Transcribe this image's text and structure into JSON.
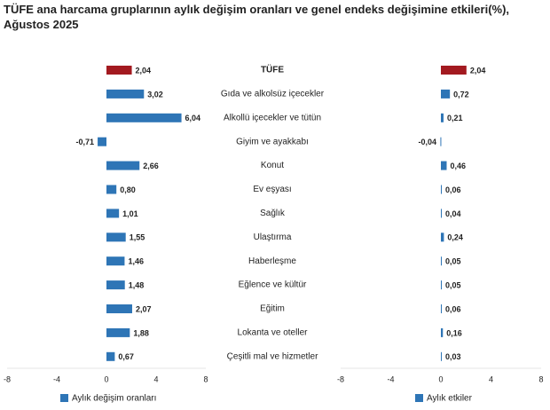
{
  "title": "TÜFE ana harcama gruplarının aylık değişim oranları ve genel endeks değişimine etkileri(%), Ağustos 2025",
  "chart_data": [
    {
      "type": "bar",
      "orientation": "horizontal",
      "categories": [
        "TÜFE",
        "Gıda ve alkolsüz içecekler",
        "Alkollü içecekler ve tütün",
        "Giyim ve ayakkabı",
        "Konut",
        "Ev eşyası",
        "Sağlık",
        "Ulaştırma",
        "Haberleşme",
        "Eğlence ve kültür",
        "Eğitim",
        "Lokanta ve oteller",
        "Çeşitli mal ve hizmetler"
      ],
      "series": [
        {
          "name": "Aylık değişim oranları",
          "color": "#2e75b6",
          "colors": [
            "#a31a20",
            "#2e75b6",
            "#2e75b6",
            "#2e75b6",
            "#2e75b6",
            "#2e75b6",
            "#2e75b6",
            "#2e75b6",
            "#2e75b6",
            "#2e75b6",
            "#2e75b6",
            "#2e75b6",
            "#2e75b6"
          ],
          "values": [
            2.04,
            3.02,
            6.04,
            -0.71,
            2.66,
            0.8,
            1.01,
            1.55,
            1.46,
            1.48,
            2.07,
            1.88,
            0.67
          ],
          "value_labels": [
            "2,04",
            "3,02",
            "6,04",
            "-0,71",
            "2,66",
            "0,80",
            "1,01",
            "1,55",
            "1,46",
            "1,48",
            "2,07",
            "1,88",
            "0,67"
          ]
        }
      ],
      "xlim": [
        -8,
        8
      ],
      "xticks": [
        -8,
        -4,
        0,
        4,
        8
      ],
      "grid": false,
      "legend": "bottom"
    },
    {
      "type": "bar",
      "orientation": "horizontal",
      "series": [
        {
          "name": "Aylık etkiler",
          "color": "#2e75b6",
          "colors": [
            "#a31a20",
            "#2e75b6",
            "#2e75b6",
            "#2e75b6",
            "#2e75b6",
            "#2e75b6",
            "#2e75b6",
            "#2e75b6",
            "#2e75b6",
            "#2e75b6",
            "#2e75b6",
            "#2e75b6",
            "#2e75b6"
          ],
          "values": [
            2.04,
            0.72,
            0.21,
            -0.04,
            0.46,
            0.06,
            0.04,
            0.24,
            0.05,
            0.05,
            0.06,
            0.16,
            0.03
          ],
          "value_labels": [
            "2,04",
            "0,72",
            "0,21",
            "-0,04",
            "0,46",
            "0,06",
            "0,04",
            "0,24",
            "0,05",
            "0,05",
            "0,06",
            "0,16",
            "0,03"
          ]
        }
      ],
      "xlim": [
        -8,
        8
      ],
      "xticks": [
        -8,
        -4,
        0,
        4,
        8
      ],
      "grid": false,
      "legend": "bottom"
    }
  ]
}
